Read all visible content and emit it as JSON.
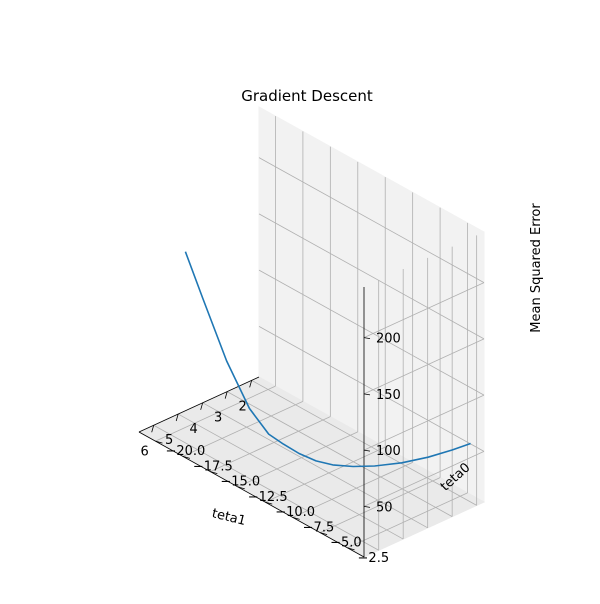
{
  "chart_data": {
    "type": "line3d",
    "title": "Gradient Descent",
    "xlabel": "teta1",
    "ylabel": "teta0",
    "zlabel": "Mean Squared Error",
    "xlim": [
      1.7,
      6.6
    ],
    "ylim": [
      -21.5,
      -1.0
    ],
    "zlim": [
      5,
      245
    ],
    "x_ticks": [
      2,
      3,
      4,
      5,
      6
    ],
    "y_ticks": [
      -20.0,
      -17.5,
      -15.0,
      -12.5,
      -10.0,
      -7.5,
      -5.0,
      -2.5
    ],
    "y_tick_labels": [
      "−20.0",
      "−17.5",
      "−15.0",
      "−12.5",
      "−10.0",
      "−7.5",
      "−5.0",
      "−2.5"
    ],
    "z_ticks": [
      50,
      100,
      150,
      200
    ],
    "grid": true,
    "series": [
      {
        "color": "#1f77b4",
        "x": [
          1.8,
          2.15,
          2.55,
          2.95,
          3.3,
          3.55,
          3.75,
          3.9,
          4.05,
          4.2,
          4.35,
          4.6,
          4.95,
          5.3,
          5.6
        ],
        "y": [
          -2.0,
          -2.9,
          -4.2,
          -5.7,
          -7.4,
          -8.8,
          -10.2,
          -11.4,
          -12.6,
          -13.7,
          -14.7,
          -15.9,
          -17.2,
          -18.6,
          -19.5
        ],
        "z": [
          52.6,
          45.4,
          36.0,
          26.8,
          18.3,
          12.7,
          8.6,
          7.1,
          8.7,
          12.6,
          17.5,
          36.4,
          75.0,
          126.8,
          166.1
        ]
      }
    ]
  }
}
